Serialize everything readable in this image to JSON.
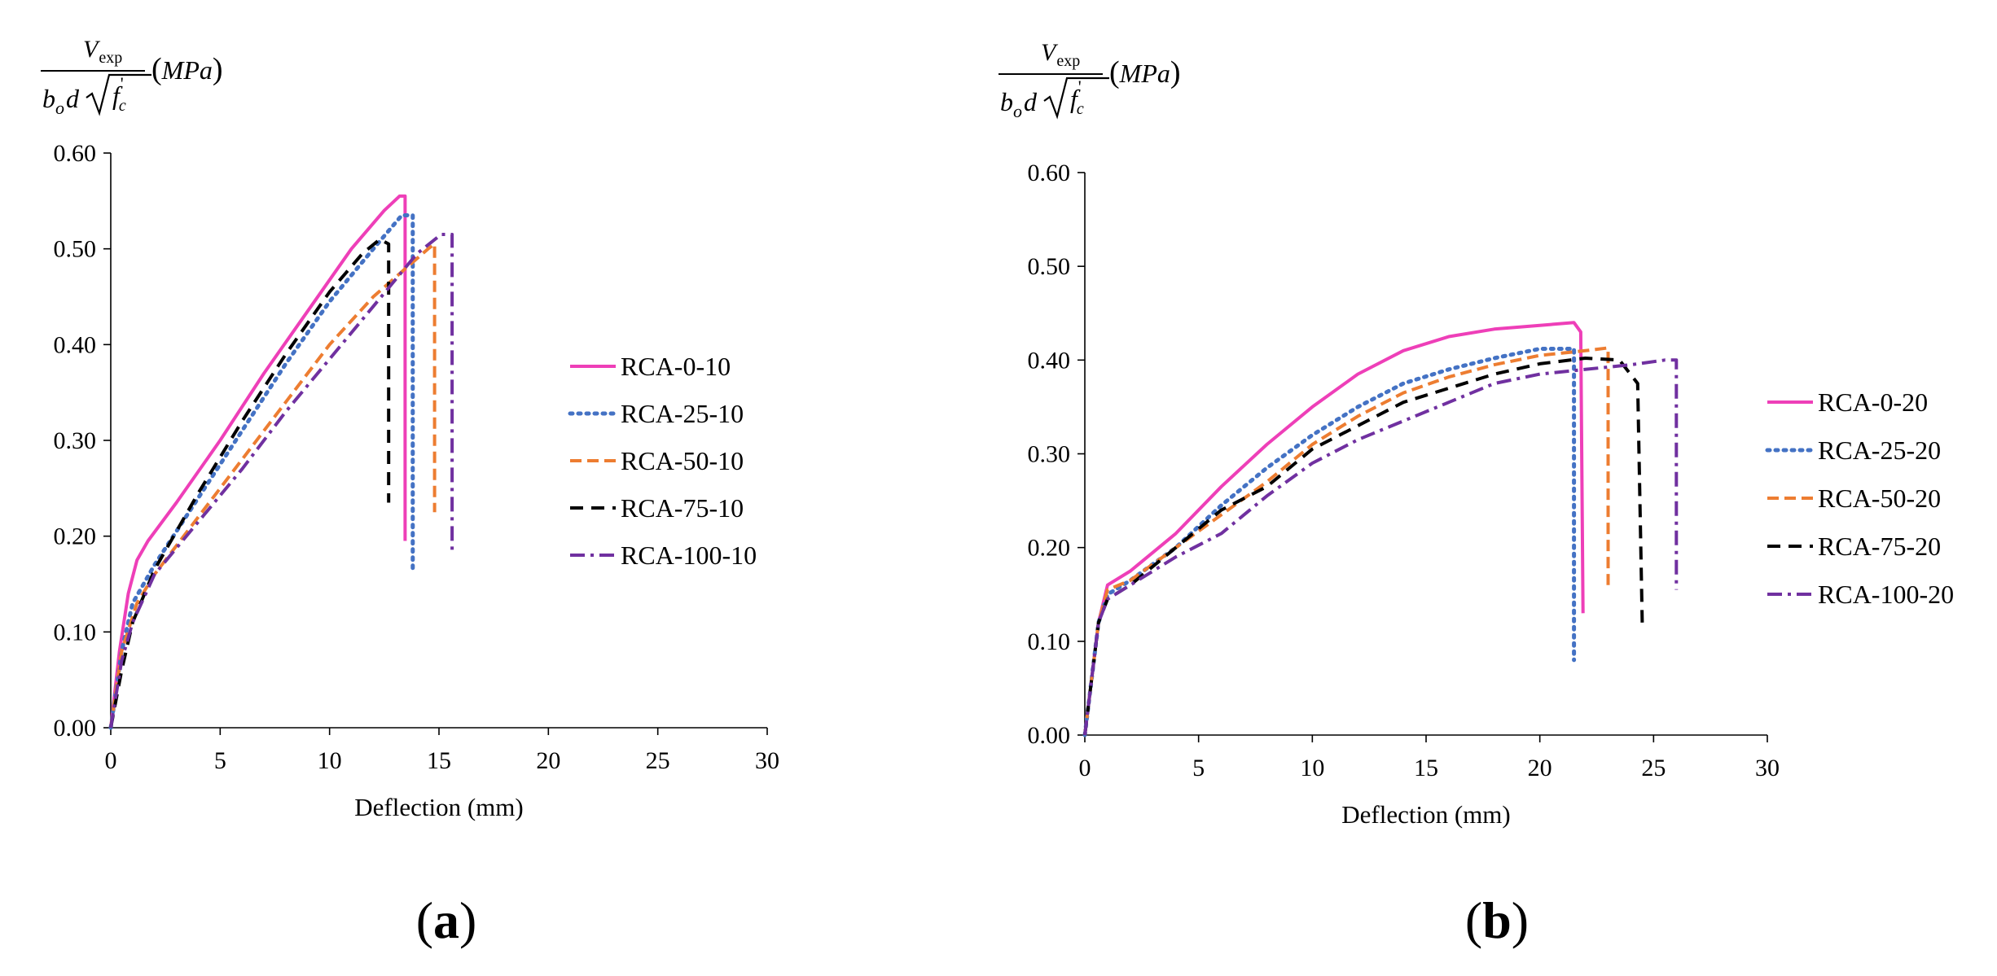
{
  "colors": {
    "RCA-0": "#ee3fb8",
    "RCA-25": "#4472c4",
    "RCA-50": "#ed7d31",
    "RCA-75": "#000000",
    "RCA-100": "#7030a0",
    "axis": "#000000"
  },
  "chart_data": [
    {
      "type": "line",
      "panel": "a",
      "panel_label": "a",
      "title": "",
      "xlabel": "Deflection (mm)",
      "ylabel": {
        "numerator": "V",
        "numerator_sub": "exp",
        "denominator_b": "b",
        "denominator_b_sub": "o",
        "denominator_d": "d",
        "denominator_root": "f",
        "denominator_root_sub": "c",
        "denominator_root_sup": "'",
        "unit": "MPa"
      },
      "xlim": [
        0,
        30
      ],
      "ylim": [
        0,
        0.6
      ],
      "xticks": [
        "0",
        "5",
        "10",
        "15",
        "20",
        "25",
        "30"
      ],
      "yticks": [
        "0.00",
        "0.10",
        "0.20",
        "0.30",
        "0.40",
        "0.50",
        "0.60"
      ],
      "legend_position": "right",
      "series": [
        {
          "name": "RCA-0-10",
          "color_key": "RCA-0",
          "dash": "solid",
          "points": [
            [
              0,
              0
            ],
            [
              0.4,
              0.08
            ],
            [
              0.8,
              0.14
            ],
            [
              1.2,
              0.175
            ],
            [
              1.7,
              0.195
            ],
            [
              3,
              0.235
            ],
            [
              5,
              0.3
            ],
            [
              7,
              0.37
            ],
            [
              9,
              0.435
            ],
            [
              11,
              0.5
            ],
            [
              12.5,
              0.54
            ],
            [
              13.2,
              0.555
            ],
            [
              13.45,
              0.555
            ],
            [
              13.45,
              0.195
            ]
          ]
        },
        {
          "name": "RCA-25-10",
          "color_key": "RCA-25",
          "dash": "dotted",
          "points": [
            [
              0,
              0
            ],
            [
              0.5,
              0.08
            ],
            [
              1,
              0.13
            ],
            [
              2,
              0.17
            ],
            [
              4,
              0.24
            ],
            [
              6,
              0.31
            ],
            [
              8,
              0.38
            ],
            [
              10,
              0.445
            ],
            [
              12,
              0.5
            ],
            [
              13.3,
              0.535
            ],
            [
              13.8,
              0.535
            ],
            [
              13.8,
              0.165
            ]
          ]
        },
        {
          "name": "RCA-50-10",
          "color_key": "RCA-50",
          "dash": "dashed",
          "points": [
            [
              0,
              0
            ],
            [
              0.5,
              0.08
            ],
            [
              1.2,
              0.13
            ],
            [
              2,
              0.16
            ],
            [
              4,
              0.22
            ],
            [
              6,
              0.28
            ],
            [
              8,
              0.34
            ],
            [
              10,
              0.4
            ],
            [
              12,
              0.45
            ],
            [
              13.5,
              0.48
            ],
            [
              14.5,
              0.5
            ],
            [
              14.8,
              0.505
            ],
            [
              14.8,
              0.225
            ]
          ]
        },
        {
          "name": "RCA-75-10",
          "color_key": "RCA-75",
          "dash": "longdash",
          "points": [
            [
              0,
              0
            ],
            [
              0.5,
              0.06
            ],
            [
              1,
              0.11
            ],
            [
              2,
              0.165
            ],
            [
              4,
              0.245
            ],
            [
              6,
              0.32
            ],
            [
              8,
              0.39
            ],
            [
              10,
              0.455
            ],
            [
              11.5,
              0.495
            ],
            [
              12.3,
              0.51
            ],
            [
              12.7,
              0.505
            ],
            [
              12.7,
              0.235
            ]
          ]
        },
        {
          "name": "RCA-100-10",
          "color_key": "RCA-100",
          "dash": "dashdot",
          "points": [
            [
              0,
              0
            ],
            [
              0.5,
              0.07
            ],
            [
              1,
              0.11
            ],
            [
              2,
              0.16
            ],
            [
              4,
              0.215
            ],
            [
              6,
              0.27
            ],
            [
              8,
              0.33
            ],
            [
              10,
              0.385
            ],
            [
              12,
              0.44
            ],
            [
              14,
              0.495
            ],
            [
              15.1,
              0.515
            ],
            [
              15.6,
              0.515
            ],
            [
              15.6,
              0.18
            ]
          ]
        }
      ]
    },
    {
      "type": "line",
      "panel": "b",
      "panel_label": "b",
      "title": "",
      "xlabel": "Deflection (mm)",
      "ylabel": {
        "numerator": "V",
        "numerator_sub": "exp",
        "denominator_b": "b",
        "denominator_b_sub": "o",
        "denominator_d": "d",
        "denominator_root": "f",
        "denominator_root_sub": "c",
        "denominator_root_sup": "'",
        "unit": "MPa"
      },
      "xlim": [
        0,
        30
      ],
      "ylim": [
        0,
        0.6
      ],
      "xticks": [
        "0",
        "5",
        "10",
        "15",
        "20",
        "25",
        "30"
      ],
      "yticks": [
        "0.00",
        "0.10",
        "0.20",
        "0.30",
        "0.40",
        "0.50",
        "0.60"
      ],
      "legend_position": "right",
      "series": [
        {
          "name": "RCA-0-20",
          "color_key": "RCA-0",
          "dash": "solid",
          "points": [
            [
              0,
              0
            ],
            [
              0.3,
              0.06
            ],
            [
              0.6,
              0.12
            ],
            [
              1,
              0.16
            ],
            [
              2,
              0.175
            ],
            [
              4,
              0.215
            ],
            [
              6,
              0.265
            ],
            [
              8,
              0.31
            ],
            [
              10,
              0.35
            ],
            [
              12,
              0.385
            ],
            [
              14,
              0.41
            ],
            [
              16,
              0.425
            ],
            [
              18,
              0.433
            ],
            [
              20,
              0.437
            ],
            [
              21.5,
              0.44
            ],
            [
              21.8,
              0.43
            ],
            [
              21.9,
              0.13
            ]
          ]
        },
        {
          "name": "RCA-25-20",
          "color_key": "RCA-25",
          "dash": "dotted",
          "points": [
            [
              0,
              0
            ],
            [
              0.3,
              0.06
            ],
            [
              0.6,
              0.12
            ],
            [
              1,
              0.15
            ],
            [
              2,
              0.165
            ],
            [
              4,
              0.2
            ],
            [
              6,
              0.245
            ],
            [
              8,
              0.285
            ],
            [
              10,
              0.32
            ],
            [
              12,
              0.35
            ],
            [
              14,
              0.375
            ],
            [
              16,
              0.39
            ],
            [
              18,
              0.402
            ],
            [
              20,
              0.412
            ],
            [
              21.5,
              0.412
            ],
            [
              21.5,
              0.08
            ]
          ]
        },
        {
          "name": "RCA-50-20",
          "color_key": "RCA-50",
          "dash": "dashed",
          "points": [
            [
              0,
              0
            ],
            [
              0.3,
              0.06
            ],
            [
              0.6,
              0.12
            ],
            [
              1,
              0.155
            ],
            [
              2,
              0.165
            ],
            [
              4,
              0.2
            ],
            [
              6,
              0.235
            ],
            [
              8,
              0.27
            ],
            [
              10,
              0.31
            ],
            [
              12,
              0.34
            ],
            [
              14,
              0.365
            ],
            [
              16,
              0.382
            ],
            [
              18,
              0.395
            ],
            [
              20,
              0.405
            ],
            [
              22,
              0.41
            ],
            [
              23,
              0.413
            ],
            [
              23,
              0.16
            ]
          ]
        },
        {
          "name": "RCA-75-20",
          "color_key": "RCA-75",
          "dash": "longdash",
          "points": [
            [
              0,
              0
            ],
            [
              0.3,
              0.06
            ],
            [
              0.6,
              0.12
            ],
            [
              1,
              0.145
            ],
            [
              2,
              0.16
            ],
            [
              4,
              0.2
            ],
            [
              6,
              0.24
            ],
            [
              8,
              0.265
            ],
            [
              10,
              0.305
            ],
            [
              12,
              0.33
            ],
            [
              14,
              0.355
            ],
            [
              16,
              0.37
            ],
            [
              18,
              0.385
            ],
            [
              20,
              0.396
            ],
            [
              22,
              0.402
            ],
            [
              23.5,
              0.4
            ],
            [
              24.3,
              0.375
            ],
            [
              24.5,
              0.12
            ]
          ]
        },
        {
          "name": "RCA-100-20",
          "color_key": "RCA-100",
          "dash": "dashdot",
          "points": [
            [
              0,
              0
            ],
            [
              0.3,
              0.06
            ],
            [
              0.6,
              0.12
            ],
            [
              1,
              0.145
            ],
            [
              2,
              0.16
            ],
            [
              4,
              0.19
            ],
            [
              6,
              0.215
            ],
            [
              8,
              0.255
            ],
            [
              10,
              0.29
            ],
            [
              12,
              0.315
            ],
            [
              14,
              0.335
            ],
            [
              16,
              0.355
            ],
            [
              18,
              0.375
            ],
            [
              20,
              0.385
            ],
            [
              22,
              0.39
            ],
            [
              24,
              0.395
            ],
            [
              25.5,
              0.4
            ],
            [
              26,
              0.4
            ],
            [
              26,
              0.155
            ]
          ]
        }
      ]
    }
  ]
}
